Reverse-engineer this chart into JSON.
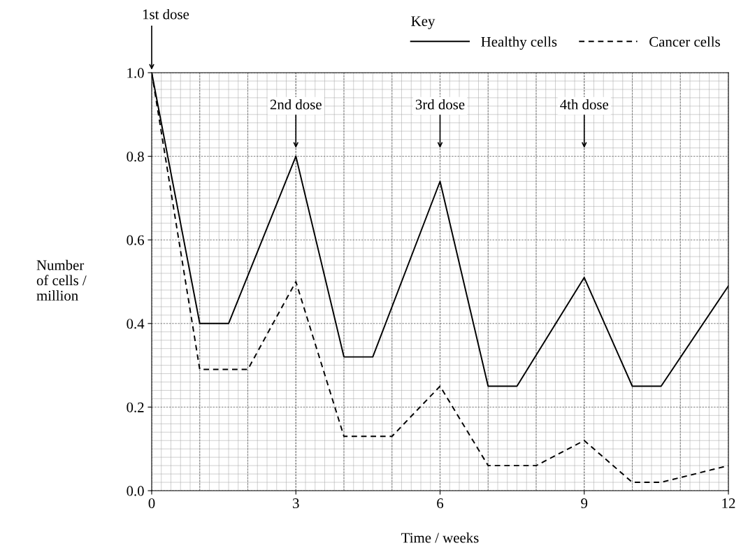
{
  "chart_data": {
    "type": "line",
    "xlabel": "Time / weeks",
    "ylabel": "Number\nof cells /\nmillion",
    "legend_title": "Key",
    "legend": "top right",
    "grid": true,
    "xlim": [
      0,
      12
    ],
    "xticks": [
      0,
      3,
      6,
      9,
      12
    ],
    "ylim": [
      0,
      1.0
    ],
    "yticks": [
      {
        "value": 0,
        "label": "0.0"
      },
      {
        "value": 0.2,
        "label": "0.2"
      },
      {
        "value": 0.4,
        "label": "0.4"
      },
      {
        "value": 0.6,
        "label": "0.6"
      },
      {
        "value": 0.8,
        "label": "0.8"
      },
      {
        "value": 1.0,
        "label": "1.0"
      }
    ],
    "marker": "none",
    "series": [
      {
        "name": "Healthy cells",
        "color": "#000000",
        "line_style": "solid",
        "x": [
          0,
          1,
          1.6,
          3,
          4,
          4.6,
          6,
          7,
          7.6,
          9,
          10,
          10.6,
          12
        ],
        "values": [
          1.0,
          0.4,
          0.4,
          0.8,
          0.32,
          0.32,
          0.74,
          0.25,
          0.25,
          0.51,
          0.25,
          0.25,
          0.49
        ]
      },
      {
        "name": "Cancer cells",
        "color": "#000000",
        "line_style": "dashed",
        "x": [
          0,
          1,
          2,
          3,
          4,
          5,
          6,
          7,
          8,
          9,
          10,
          10.6,
          12
        ],
        "values": [
          1.0,
          0.29,
          0.29,
          0.5,
          0.13,
          0.13,
          0.25,
          0.06,
          0.06,
          0.12,
          0.02,
          0.02,
          0.06
        ]
      }
    ],
    "annotations": [
      "1st dose",
      "2nd dose",
      "3rd dose",
      "4th dose"
    ]
  }
}
